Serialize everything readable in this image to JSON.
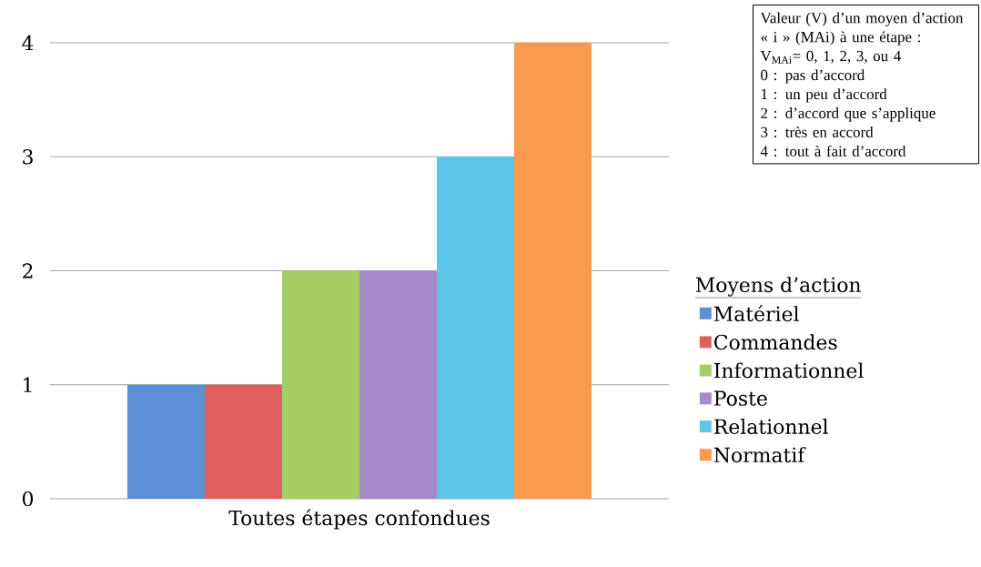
{
  "chart_data": {
    "type": "bar",
    "categories": [
      "Toutes étapes confondues"
    ],
    "series": [
      {
        "name": "Matériel",
        "color": "#5b8fd6",
        "values": [
          1
        ]
      },
      {
        "name": "Commandes",
        "color": "#e0605f",
        "values": [
          1
        ]
      },
      {
        "name": "Informationnel",
        "color": "#a6cf63",
        "values": [
          2
        ]
      },
      {
        "name": "Poste",
        "color": "#a78bc8",
        "values": [
          2
        ]
      },
      {
        "name": "Relationnel",
        "color": "#5bc6e6",
        "values": [
          3
        ]
      },
      {
        "name": "Normatif",
        "color": "#f99a4e",
        "values": [
          4
        ]
      }
    ],
    "ylim": [
      0,
      4
    ],
    "yticks": [
      0,
      1,
      2,
      3,
      4
    ],
    "grid": "y",
    "legend": "right",
    "legend_title": "Moyens d’action",
    "annotations": [
      "Valeur (V) d’un moyen d’action « i » (MAi) à une étape :",
      "V$_{MAi}$= 0, 1, 2, 3, ou 4",
      "0 : pas d’accord",
      "1 : un peu d’accord",
      "2 : d’accord que s’applique",
      "3 : très en accord",
      "4 : tout à fait d’accord"
    ]
  }
}
